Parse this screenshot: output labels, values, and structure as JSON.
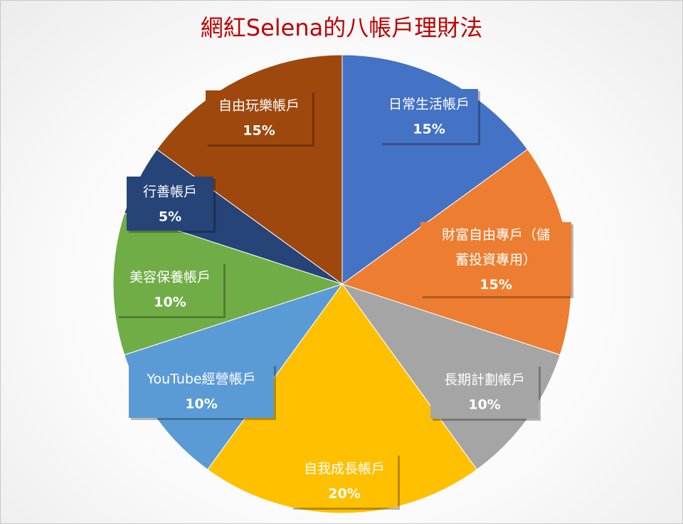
{
  "chart_data": {
    "type": "pie",
    "title": "網紅Selena的八帳戶理財法",
    "slices": [
      {
        "label": "日常生活帳戶",
        "value": 15,
        "display": "15%",
        "color": "#4472c4",
        "text_color": "#ffffff"
      },
      {
        "label": "財富自由專戶（儲蓄投資專用）",
        "label_lines": [
          "財富自由專戶（儲",
          "蓄投資專用）"
        ],
        "value": 15,
        "display": "15%",
        "color": "#ed7d31",
        "text_color": "#ffffff"
      },
      {
        "label": "長期計劃帳戶",
        "value": 10,
        "display": "10%",
        "color": "#a5a5a5",
        "text_color": "#ffffff"
      },
      {
        "label": "自我成長帳戶",
        "value": 20,
        "display": "20%",
        "color": "#ffc000",
        "text_color": "#ffffff"
      },
      {
        "label": "YouTube經營帳戶",
        "value": 10,
        "display": "10%",
        "color": "#5b9bd5",
        "text_color": "#ffffff"
      },
      {
        "label": "美容保養帳戶",
        "value": 10,
        "display": "10%",
        "color": "#70ad47",
        "text_color": "#ffffff"
      },
      {
        "label": "行善帳戶",
        "value": 5,
        "display": "5%",
        "color": "#264478",
        "text_color": "#ffffff"
      },
      {
        "label": "自由玩樂帳戶",
        "value": 15,
        "display": "15%",
        "color": "#9e480e",
        "text_color": "#ffffff"
      }
    ],
    "start_angle": "12 o'clock",
    "direction": "clockwise",
    "label_position": "inside-callout"
  }
}
